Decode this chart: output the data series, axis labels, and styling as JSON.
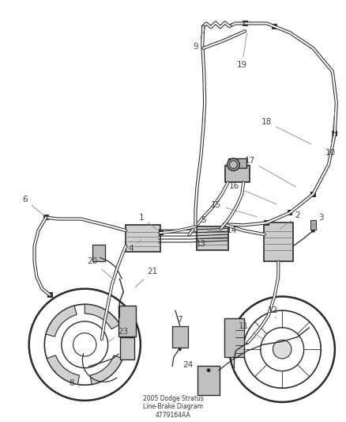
{
  "title": "2005 Dodge Stratus\nLine-Brake Diagram\n4779164AA",
  "bg_color": "#ffffff",
  "line_color": "#2a2a2a",
  "label_color": "#444444",
  "leader_color": "#888888",
  "fig_width": 4.39,
  "fig_height": 5.33,
  "dpi": 100,
  "fontsize_label": 7.5
}
